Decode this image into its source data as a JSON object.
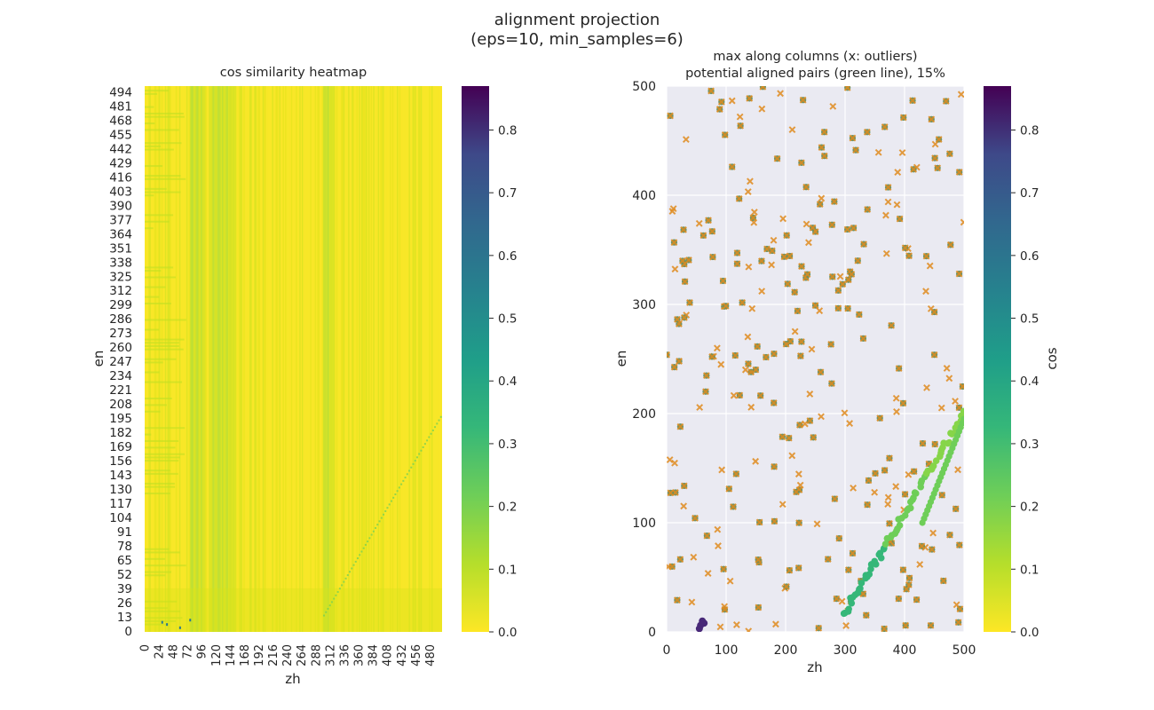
{
  "figure": {
    "suptitle_line1": "alignment projection",
    "suptitle_line2": "(eps=10, min_samples=6)",
    "colors": {
      "accent_cluster": "#35b779",
      "outlier_marker": "#e08b1f",
      "gray_point": "#6b8e5a",
      "panel_bg": "#eaeaf2"
    }
  },
  "chart_data": [
    {
      "type": "heatmap",
      "title": "cos similarity heatmap",
      "xlabel": "zh",
      "ylabel": "en",
      "xticks": [
        0,
        24,
        48,
        72,
        96,
        120,
        144,
        168,
        192,
        216,
        240,
        264,
        288,
        312,
        336,
        360,
        384,
        408,
        432,
        456,
        480
      ],
      "yticks": [
        0,
        13,
        26,
        39,
        52,
        65,
        78,
        91,
        104,
        117,
        130,
        143,
        156,
        169,
        182,
        195,
        208,
        221,
        234,
        247,
        260,
        273,
        286,
        299,
        312,
        325,
        338,
        351,
        364,
        377,
        390,
        403,
        416,
        429,
        442,
        455,
        468,
        481,
        494
      ],
      "x_range": [
        0,
        500
      ],
      "y_range": [
        0,
        500
      ],
      "colormap": "viridis_r",
      "colorbar": {
        "range": [
          0.0,
          0.87
        ],
        "ticks": [
          "0.0",
          "0.1",
          "0.2",
          "0.3",
          "0.4",
          "0.5",
          "0.6",
          "0.7",
          "0.8"
        ]
      },
      "bright_column_bands": [
        [
          76,
          100
        ],
        [
          108,
          150
        ],
        [
          300,
          316
        ]
      ],
      "diagonal_trace": {
        "x": [
          300,
          500
        ],
        "y": [
          15,
          200
        ],
        "value": 0.3
      }
    },
    {
      "type": "scatter",
      "title_line1": "max along columns (x: outliers)",
      "title_line2": "potential aligned pairs (green line), 15%",
      "xlabel": "zh",
      "ylabel": "en",
      "xlim": [
        0,
        500
      ],
      "ylim": [
        0,
        500
      ],
      "xticks": [
        "0",
        "100",
        "200",
        "300",
        "400",
        "500"
      ],
      "yticks": [
        "0",
        "100",
        "200",
        "300",
        "400",
        "500"
      ],
      "grid": true,
      "colorbar": {
        "label": "cos",
        "range": [
          0.0,
          0.87
        ],
        "ticks": [
          "0.0",
          "0.1",
          "0.2",
          "0.3",
          "0.4",
          "0.5",
          "0.6",
          "0.7",
          "0.8"
        ]
      },
      "aligned_pairs": {
        "x_range": [
          297,
          500
        ],
        "y_range": [
          15,
          200
        ],
        "cos_range": [
          0.2,
          0.3
        ]
      },
      "outliers_sampled": 300,
      "corner_cluster": [
        [
          57,
          6
        ],
        [
          60,
          10
        ],
        [
          63,
          8
        ],
        [
          55,
          3
        ]
      ]
    }
  ]
}
